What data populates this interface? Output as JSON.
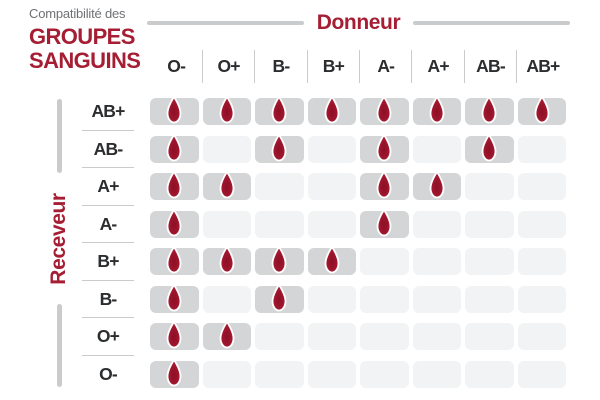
{
  "title": {
    "subtitle": "Compatibilité des",
    "line1": "GROUPES",
    "line2": "SANGUINS"
  },
  "axes": {
    "donor_label": "Donneur",
    "receiver_label": "Receveur"
  },
  "chart_data": {
    "type": "heatmap",
    "title": "Compatibilité des GROUPES SANGUINS",
    "columns_axis_label": "Donneur",
    "rows_axis_label": "Receveur",
    "columns": [
      "O-",
      "O+",
      "B-",
      "B+",
      "A-",
      "A+",
      "AB-",
      "AB+"
    ],
    "rows": [
      "AB+",
      "AB-",
      "A+",
      "A-",
      "B+",
      "B-",
      "O+",
      "O-"
    ],
    "cell_symbol": "blood-drop-icon",
    "legend_position": "none",
    "matrix": [
      [
        1,
        1,
        1,
        1,
        1,
        1,
        1,
        1
      ],
      [
        1,
        0,
        1,
        0,
        1,
        0,
        1,
        0
      ],
      [
        1,
        1,
        0,
        0,
        1,
        1,
        0,
        0
      ],
      [
        1,
        0,
        0,
        0,
        1,
        0,
        0,
        0
      ],
      [
        1,
        1,
        1,
        1,
        0,
        0,
        0,
        0
      ],
      [
        1,
        0,
        1,
        0,
        0,
        0,
        0,
        0
      ],
      [
        1,
        1,
        0,
        0,
        0,
        0,
        0,
        0
      ],
      [
        1,
        0,
        0,
        0,
        0,
        0,
        0,
        0
      ]
    ]
  },
  "colors": {
    "accent_red": "#a51e33",
    "drop_red_edge": "#ab1f36",
    "drop_red_core": "#8c0f26",
    "filled_cell": "#d3d5d6",
    "empty_cell": "#f2f3f4",
    "divider_line": "#c9cbcc",
    "text_dark": "#2b2d2f",
    "muted_gray": "#6f7174"
  }
}
